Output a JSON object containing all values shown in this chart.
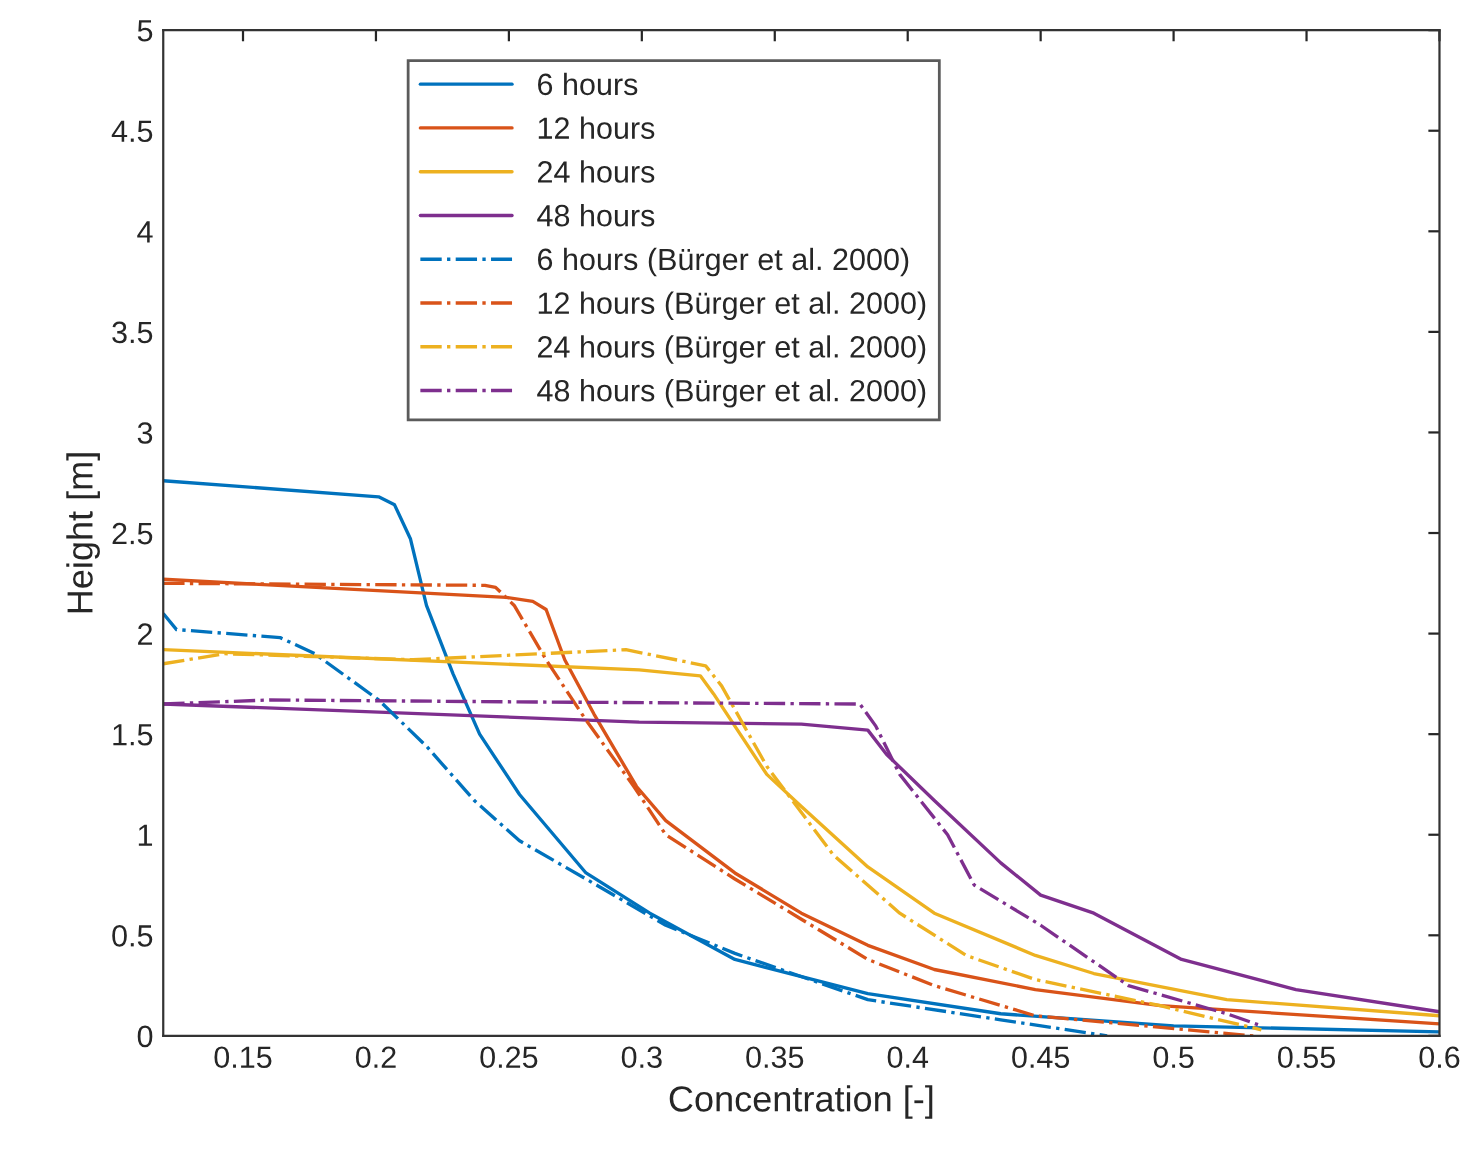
{
  "chart_data": {
    "type": "line",
    "xlabel": "Concentration [-]",
    "ylabel": "Height [m]",
    "xlim": [
      0.12,
      0.6
    ],
    "xticks": [
      0.15,
      0.2,
      0.25,
      0.3,
      0.35,
      0.4,
      0.45,
      0.5,
      0.55,
      0.6
    ],
    "ylim": [
      0,
      5
    ],
    "yticks": [
      0,
      0.5,
      1,
      1.5,
      2,
      2.5,
      3,
      3.5,
      4,
      4.5,
      5
    ],
    "grid": false,
    "legend": "top",
    "marker": "none",
    "series": [
      {
        "name": "6 hours",
        "color": "#0072bd",
        "line_style": "solid",
        "x": [
          0.12,
          0.201,
          0.207,
          0.213,
          0.219,
          0.229,
          0.239,
          0.254,
          0.279,
          0.303,
          0.335,
          0.385,
          0.435,
          0.5,
          0.6
        ],
        "values": [
          2.76,
          2.68,
          2.64,
          2.47,
          2.14,
          1.8,
          1.5,
          1.2,
          0.81,
          0.61,
          0.38,
          0.21,
          0.11,
          0.05,
          0.02
        ]
      },
      {
        "name": "12 hours",
        "color": "#d95319",
        "line_style": "solid",
        "x": [
          0.12,
          0.249,
          0.259,
          0.264,
          0.271,
          0.282,
          0.298,
          0.309,
          0.335,
          0.36,
          0.385,
          0.41,
          0.448,
          0.495,
          0.6
        ],
        "values": [
          2.27,
          2.18,
          2.16,
          2.12,
          1.87,
          1.6,
          1.24,
          1.07,
          0.81,
          0.61,
          0.45,
          0.33,
          0.23,
          0.15,
          0.06
        ]
      },
      {
        "name": "24 hours",
        "color": "#edb120",
        "line_style": "solid",
        "x": [
          0.12,
          0.299,
          0.322,
          0.327,
          0.335,
          0.347,
          0.36,
          0.385,
          0.41,
          0.448,
          0.47,
          0.52,
          0.6
        ],
        "values": [
          1.92,
          1.82,
          1.79,
          1.7,
          1.54,
          1.3,
          1.14,
          0.84,
          0.61,
          0.4,
          0.31,
          0.18,
          0.1
        ]
      },
      {
        "name": "48 hours",
        "color": "#7e2f8e",
        "line_style": "solid",
        "x": [
          0.12,
          0.299,
          0.36,
          0.385,
          0.392,
          0.41,
          0.435,
          0.45,
          0.47,
          0.503,
          0.546,
          0.6
        ],
        "values": [
          1.65,
          1.56,
          1.55,
          1.52,
          1.4,
          1.17,
          0.86,
          0.7,
          0.61,
          0.38,
          0.23,
          0.12
        ]
      },
      {
        "name": "6 hours (Bürger et al. 2000)",
        "color": "#0072bd",
        "line_style": "dashdot",
        "x": [
          0.12,
          0.125,
          0.164,
          0.177,
          0.201,
          0.219,
          0.237,
          0.254,
          0.279,
          0.309,
          0.335,
          0.385,
          0.435,
          0.475
        ],
        "values": [
          2.1,
          2.02,
          1.98,
          1.9,
          1.67,
          1.44,
          1.17,
          0.97,
          0.78,
          0.55,
          0.41,
          0.18,
          0.08,
          0
        ]
      },
      {
        "name": "12 hours (Bürger et al. 2000)",
        "color": "#d95319",
        "line_style": "dashdot",
        "x": [
          0.12,
          0.241,
          0.245,
          0.252,
          0.264,
          0.279,
          0.297,
          0.309,
          0.335,
          0.36,
          0.385,
          0.41,
          0.448,
          0.53
        ],
        "values": [
          2.25,
          2.24,
          2.23,
          2.14,
          1.87,
          1.57,
          1.24,
          1.0,
          0.78,
          0.58,
          0.38,
          0.25,
          0.1,
          0
        ]
      },
      {
        "name": "24 hours (Bürger et al. 2000)",
        "color": "#edb120",
        "line_style": "dashdot",
        "x": [
          0.12,
          0.143,
          0.214,
          0.294,
          0.324,
          0.33,
          0.347,
          0.372,
          0.397,
          0.422,
          0.448,
          0.495,
          0.533
        ],
        "values": [
          1.85,
          1.9,
          1.87,
          1.92,
          1.84,
          1.74,
          1.34,
          0.9,
          0.61,
          0.4,
          0.28,
          0.15,
          0.03
        ]
      },
      {
        "name": "48 hours (Bürger et al. 2000)",
        "color": "#7e2f8e",
        "line_style": "dashdot",
        "x": [
          0.12,
          0.16,
          0.26,
          0.382,
          0.388,
          0.397,
          0.415,
          0.425,
          0.45,
          0.483,
          0.52,
          0.533
        ],
        "values": [
          1.65,
          1.67,
          1.66,
          1.65,
          1.54,
          1.3,
          1.0,
          0.75,
          0.55,
          0.25,
          0.11,
          0.05
        ]
      }
    ]
  }
}
